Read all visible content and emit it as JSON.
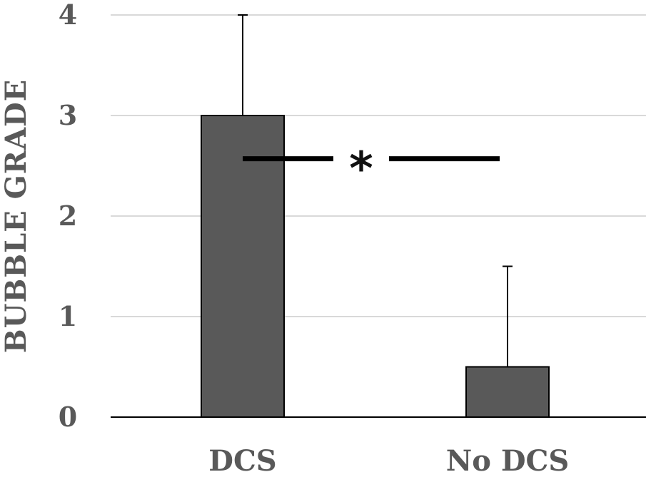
{
  "chart_data": {
    "type": "bar",
    "title": "",
    "xlabel": "",
    "ylabel": "BUBBLE GRADE",
    "categories": [
      "DCS",
      "No DCS"
    ],
    "values": [
      3,
      0.5
    ],
    "error_bars_upper": [
      1,
      1
    ],
    "ylim": [
      0,
      4
    ],
    "yticks": [
      "0",
      "1",
      "2",
      "3",
      "4"
    ],
    "grid": true,
    "legend": "none",
    "bar_color": "#595959",
    "significance": {
      "between": [
        "DCS",
        "No DCS"
      ],
      "y": 2.57,
      "symbol": "*"
    }
  }
}
